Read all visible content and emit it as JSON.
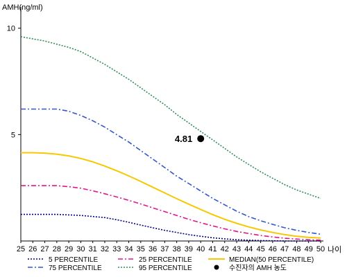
{
  "chart_data": {
    "type": "line",
    "ylabel": "AMH(ng/ml)",
    "xlabel": "나이",
    "x": [
      25,
      26,
      27,
      28,
      29,
      30,
      31,
      32,
      33,
      34,
      35,
      36,
      37,
      38,
      39,
      40,
      41,
      42,
      43,
      44,
      45,
      46,
      47,
      48,
      49,
      50
    ],
    "x_ticks": [
      "25",
      "26",
      "27",
      "28",
      "29",
      "30",
      "31",
      "32",
      "33",
      "34",
      "35",
      "36",
      "37",
      "38",
      "39",
      "40",
      "41",
      "42",
      "43",
      "44",
      "45",
      "46",
      "47",
      "48",
      "49",
      "50"
    ],
    "y_ticks": [
      "5",
      "10"
    ],
    "xlim": [
      25,
      50
    ],
    "ylim": [
      0,
      11
    ],
    "grid": false,
    "series": [
      {
        "name": "5 PERCENTILE",
        "color": "#000080",
        "style": "dotted",
        "x": [
          25,
          28,
          30,
          32,
          33,
          34,
          35,
          36,
          37,
          38,
          39,
          40,
          41,
          42,
          43,
          44,
          45,
          46,
          47,
          48,
          49,
          50
        ],
        "values": [
          1.25,
          1.25,
          1.2,
          1.1,
          1.0,
          0.88,
          0.75,
          0.62,
          0.5,
          0.4,
          0.3,
          0.22,
          0.15,
          0.1,
          0.06,
          0.04,
          0.02,
          0.01,
          0.0,
          0.0,
          0.0,
          0.0
        ]
      },
      {
        "name": "75 PERCENTILE",
        "color": "#3355cc",
        "style": "dashdot",
        "x": [
          25,
          28,
          29,
          30,
          31,
          32,
          33,
          34,
          35,
          36,
          37,
          38,
          39,
          40,
          41,
          42,
          43,
          44,
          45,
          46,
          47,
          48,
          49,
          50
        ],
        "values": [
          6.2,
          6.2,
          6.1,
          5.9,
          5.65,
          5.35,
          5.0,
          4.65,
          4.25,
          3.85,
          3.45,
          3.05,
          2.7,
          2.35,
          2.0,
          1.7,
          1.4,
          1.15,
          0.95,
          0.78,
          0.62,
          0.5,
          0.4,
          0.32
        ]
      },
      {
        "name": "25 PERCENTILE",
        "color": "#e0158c",
        "style": "dashdot",
        "x": [
          25,
          28,
          29,
          30,
          31,
          32,
          33,
          34,
          35,
          36,
          37,
          38,
          39,
          40,
          41,
          42,
          43,
          44,
          45,
          46,
          47,
          48,
          49,
          50
        ],
        "values": [
          2.6,
          2.6,
          2.55,
          2.48,
          2.36,
          2.22,
          2.07,
          1.91,
          1.74,
          1.56,
          1.38,
          1.2,
          1.02,
          0.86,
          0.71,
          0.57,
          0.45,
          0.35,
          0.26,
          0.19,
          0.13,
          0.09,
          0.06,
          0.04
        ]
      },
      {
        "name": "95 PERCENTILE",
        "color": "#2e8b57",
        "style": "dotted",
        "x": [
          25,
          27,
          29,
          30,
          31,
          32,
          33,
          34,
          35,
          36,
          37,
          38,
          39,
          40,
          41,
          42,
          43,
          44,
          45,
          46,
          47,
          48,
          49,
          50
        ],
        "values": [
          9.6,
          9.4,
          9.1,
          8.9,
          8.6,
          8.3,
          7.95,
          7.6,
          7.2,
          6.8,
          6.4,
          5.95,
          5.55,
          5.15,
          4.75,
          4.35,
          3.95,
          3.6,
          3.25,
          2.95,
          2.65,
          2.4,
          2.2,
          2.0
        ]
      },
      {
        "name": "MEDIAN(50 PERCENTILE)",
        "color": "#f5c800",
        "style": "solid",
        "x": [
          25,
          26,
          27,
          28,
          29,
          30,
          31,
          32,
          33,
          34,
          35,
          36,
          37,
          38,
          39,
          40,
          41,
          42,
          43,
          44,
          45,
          46,
          47,
          48,
          49,
          50
        ],
        "values": [
          4.15,
          4.15,
          4.13,
          4.08,
          4.0,
          3.88,
          3.72,
          3.52,
          3.3,
          3.06,
          2.8,
          2.53,
          2.26,
          1.99,
          1.73,
          1.48,
          1.24,
          1.02,
          0.83,
          0.66,
          0.52,
          0.4,
          0.3,
          0.22,
          0.17,
          0.14
        ]
      }
    ],
    "marker": {
      "label": "수진자의 AMH 농도",
      "x": 40,
      "y": 4.81,
      "text": "4.81",
      "color": "#000000"
    },
    "legend": {
      "position": "bottom",
      "items": [
        {
          "label": "5 PERCENTILE",
          "color": "#000080",
          "style": "dotted"
        },
        {
          "label": "25 PERCENTILE",
          "color": "#e0158c",
          "style": "dashdot"
        },
        {
          "label": "MEDIAN(50 PERCENTILE)",
          "color": "#f5c800",
          "style": "solid"
        },
        {
          "label": "75 PERCENTILE",
          "color": "#3355cc",
          "style": "dashdot"
        },
        {
          "label": "95 PERCENTILE",
          "color": "#2e8b57",
          "style": "dotted"
        },
        {
          "label": "수진자의 AMH 농도",
          "color": "#000000",
          "style": "point"
        }
      ]
    }
  }
}
